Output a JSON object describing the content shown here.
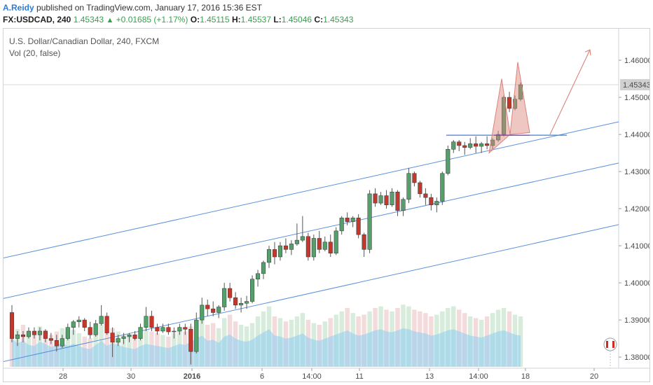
{
  "publication": {
    "author": "A.Reidy",
    "text": " published on TradingView.com, January 17, 2016 15:36 EST"
  },
  "quote": {
    "symbol": "FX:USDCAD, 240",
    "last": "1.45343",
    "change": "+0.01685 (+1.17%)",
    "open_label": "O:",
    "open": "1.45115",
    "high_label": "H:",
    "high": "1.45537",
    "low_label": "L:",
    "low": "1.45046",
    "close_label": "C:",
    "close": "1.45343"
  },
  "legend": {
    "title": "U.S. Dollar/Canadian Dollar, 240, FXCM",
    "indicator": "Vol (20, false)"
  },
  "chart_data": {
    "type": "candlestick",
    "title": "U.S. Dollar/Canadian Dollar, 240, FXCM",
    "ylim": [
      1.377,
      1.4685
    ],
    "y_ticks": [
      "1.46000",
      "1.45000",
      "1.44000",
      "1.43000",
      "1.42000",
      "1.41000",
      "1.40000",
      "1.39000",
      "1.38000"
    ],
    "x_ticks": [
      "28",
      "30",
      "2016",
      "6",
      "14:00",
      "11",
      "13",
      "14:00",
      "18",
      "20"
    ],
    "bold_x_tick": "2016",
    "last_price_label": "1.45343",
    "colors": {
      "up": "#53a06b",
      "down": "#c4372b",
      "channel": "#3f7fd8",
      "pattern": "#d9837a",
      "volume": "#8ecdf0",
      "last_price_bg": "#d0d0d0"
    },
    "candles": [
      [
        1.392,
        1.394,
        1.384,
        1.385
      ],
      [
        1.385,
        1.387,
        1.383,
        1.386
      ],
      [
        1.386,
        1.387,
        1.384,
        1.3855
      ],
      [
        1.3855,
        1.388,
        1.385,
        1.387
      ],
      [
        1.387,
        1.388,
        1.385,
        1.386
      ],
      [
        1.386,
        1.388,
        1.3845,
        1.387
      ],
      [
        1.387,
        1.3875,
        1.384,
        1.385
      ],
      [
        1.385,
        1.3865,
        1.3835,
        1.3845
      ],
      [
        1.3845,
        1.386,
        1.3815,
        1.383
      ],
      [
        1.383,
        1.386,
        1.3825,
        1.385
      ],
      [
        1.385,
        1.389,
        1.3845,
        1.388
      ],
      [
        1.388,
        1.39,
        1.386,
        1.3895
      ],
      [
        1.3895,
        1.391,
        1.388,
        1.39
      ],
      [
        1.39,
        1.3905,
        1.387,
        1.388
      ],
      [
        1.388,
        1.3895,
        1.385,
        1.386
      ],
      [
        1.386,
        1.39,
        1.3855,
        1.389
      ],
      [
        1.389,
        1.394,
        1.3885,
        1.391
      ],
      [
        1.391,
        1.392,
        1.386,
        1.3865
      ],
      [
        1.3865,
        1.388,
        1.38,
        1.384
      ],
      [
        1.384,
        1.386,
        1.383,
        1.385
      ],
      [
        1.385,
        1.3865,
        1.3835,
        1.3855
      ],
      [
        1.3855,
        1.3865,
        1.384,
        1.386
      ],
      [
        1.386,
        1.387,
        1.3845,
        1.385
      ],
      [
        1.385,
        1.389,
        1.3845,
        1.388
      ],
      [
        1.388,
        1.3935,
        1.387,
        1.391
      ],
      [
        1.391,
        1.3925,
        1.387,
        1.388
      ],
      [
        1.388,
        1.389,
        1.386,
        1.387
      ],
      [
        1.387,
        1.389,
        1.3865,
        1.388
      ],
      [
        1.388,
        1.389,
        1.386,
        1.3868
      ],
      [
        1.3868,
        1.388,
        1.385,
        1.387
      ],
      [
        1.387,
        1.389,
        1.386,
        1.388
      ],
      [
        1.388,
        1.389,
        1.386,
        1.3875
      ],
      [
        1.3875,
        1.389,
        1.378,
        1.3815
      ],
      [
        1.3815,
        1.392,
        1.381,
        1.39
      ],
      [
        1.39,
        1.396,
        1.389,
        1.394
      ],
      [
        1.394,
        1.3955,
        1.391,
        1.393
      ],
      [
        1.393,
        1.395,
        1.391,
        1.392
      ],
      [
        1.392,
        1.394,
        1.3905,
        1.3935
      ],
      [
        1.3935,
        1.4,
        1.3925,
        1.3985
      ],
      [
        1.3985,
        1.4,
        1.395,
        1.396
      ],
      [
        1.396,
        1.3975,
        1.393,
        1.394
      ],
      [
        1.394,
        1.396,
        1.392,
        1.3945
      ],
      [
        1.3945,
        1.3965,
        1.393,
        1.395
      ],
      [
        1.395,
        1.402,
        1.3945,
        1.401
      ],
      [
        1.401,
        1.4035,
        1.399,
        1.4025
      ],
      [
        1.4025,
        1.406,
        1.401,
        1.4055
      ],
      [
        1.4055,
        1.41,
        1.404,
        1.409
      ],
      [
        1.409,
        1.411,
        1.405,
        1.407
      ],
      [
        1.407,
        1.411,
        1.406,
        1.41
      ],
      [
        1.41,
        1.412,
        1.408,
        1.409
      ],
      [
        1.409,
        1.4115,
        1.4075,
        1.4105
      ],
      [
        1.4105,
        1.416,
        1.41,
        1.4115
      ],
      [
        1.4115,
        1.418,
        1.411,
        1.4125
      ],
      [
        1.4125,
        1.4135,
        1.406,
        1.407
      ],
      [
        1.407,
        1.413,
        1.406,
        1.412
      ],
      [
        1.412,
        1.414,
        1.408,
        1.409
      ],
      [
        1.409,
        1.4125,
        1.4085,
        1.411
      ],
      [
        1.411,
        1.413,
        1.407,
        1.408
      ],
      [
        1.408,
        1.415,
        1.4075,
        1.414
      ],
      [
        1.414,
        1.418,
        1.413,
        1.4175
      ],
      [
        1.4175,
        1.419,
        1.4155,
        1.4165
      ],
      [
        1.4165,
        1.418,
        1.415,
        1.4175
      ],
      [
        1.4175,
        1.4185,
        1.412,
        1.413
      ],
      [
        1.413,
        1.4135,
        1.407,
        1.409
      ],
      [
        1.409,
        1.425,
        1.408,
        1.424
      ],
      [
        1.424,
        1.4255,
        1.4205,
        1.4215
      ],
      [
        1.4215,
        1.4245,
        1.421,
        1.4235
      ],
      [
        1.4235,
        1.425,
        1.42,
        1.421
      ],
      [
        1.421,
        1.4255,
        1.4205,
        1.4245
      ],
      [
        1.4245,
        1.425,
        1.418,
        1.4195
      ],
      [
        1.4195,
        1.423,
        1.418,
        1.4225
      ],
      [
        1.4225,
        1.431,
        1.4215,
        1.4295
      ],
      [
        1.4295,
        1.43,
        1.426,
        1.427
      ],
      [
        1.427,
        1.4275,
        1.423,
        1.424
      ],
      [
        1.424,
        1.4255,
        1.421,
        1.423
      ],
      [
        1.423,
        1.424,
        1.4195,
        1.421
      ],
      [
        1.421,
        1.423,
        1.419,
        1.422
      ],
      [
        1.422,
        1.43,
        1.421,
        1.4295
      ],
      [
        1.4295,
        1.437,
        1.429,
        1.436
      ],
      [
        1.436,
        1.4385,
        1.435,
        1.438
      ],
      [
        1.438,
        1.4385,
        1.4355,
        1.437
      ],
      [
        1.437,
        1.438,
        1.4345,
        1.4365
      ],
      [
        1.4365,
        1.439,
        1.436,
        1.4375
      ],
      [
        1.4375,
        1.4395,
        1.435,
        1.4368
      ],
      [
        1.4368,
        1.438,
        1.435,
        1.4375
      ],
      [
        1.4375,
        1.4395,
        1.436,
        1.437
      ],
      [
        1.437,
        1.439,
        1.436,
        1.4385
      ],
      [
        1.4385,
        1.441,
        1.438,
        1.44
      ],
      [
        1.44,
        1.4505,
        1.4395,
        1.45
      ],
      [
        1.45,
        1.4515,
        1.446,
        1.447
      ],
      [
        1.447,
        1.4505,
        1.4465,
        1.4495
      ],
      [
        1.4495,
        1.454,
        1.449,
        1.4534
      ]
    ],
    "volume": [
      0.55,
      0.45,
      0.5,
      0.42,
      0.4,
      0.48,
      0.44,
      0.38,
      0.42,
      0.46,
      0.4,
      0.44,
      0.4,
      0.36,
      0.34,
      0.42,
      0.5,
      0.4,
      0.46,
      0.42,
      0.38,
      0.36,
      0.34,
      0.4,
      0.44,
      0.42,
      0.4,
      0.38,
      0.36,
      0.4,
      0.44,
      0.42,
      0.48,
      0.55,
      0.6,
      0.5,
      0.52,
      0.46,
      0.58,
      0.62,
      0.54,
      0.5,
      0.48,
      0.52,
      0.6,
      0.66,
      0.72,
      0.6,
      0.58,
      0.54,
      0.56,
      0.6,
      0.64,
      0.56,
      0.52,
      0.5,
      0.54,
      0.58,
      0.62,
      0.66,
      0.7,
      0.64,
      0.6,
      0.62,
      0.66,
      0.7,
      0.72,
      0.68,
      0.66,
      0.7,
      0.74,
      0.72,
      0.68,
      0.66,
      0.64,
      0.6,
      0.62,
      0.66,
      0.7,
      0.72,
      0.68,
      0.64,
      0.6,
      0.58,
      0.56,
      0.6,
      0.64,
      0.68,
      0.7,
      0.66,
      0.62,
      0.6
    ]
  }
}
